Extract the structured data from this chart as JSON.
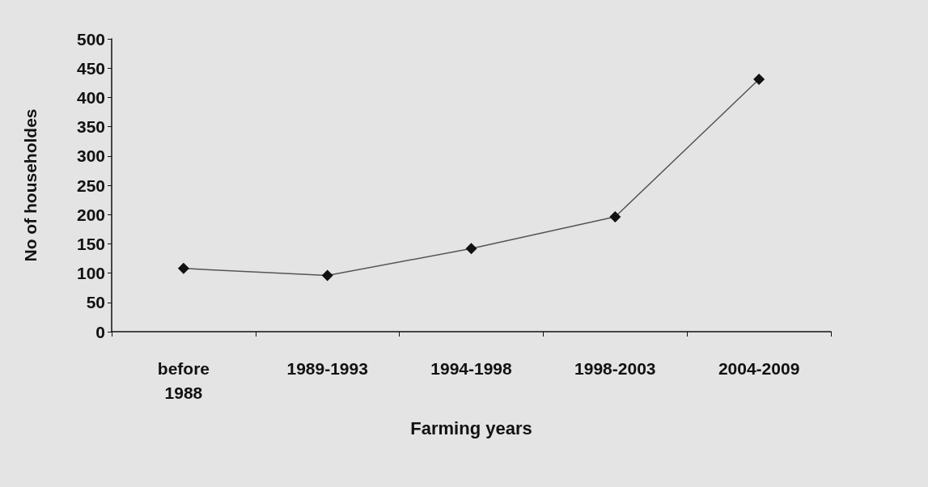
{
  "chart_data": {
    "type": "line",
    "xlabel": "Farming years",
    "ylabel": "No of householdes",
    "categories": [
      "before\n1988",
      "1989-1993",
      "1994-1998",
      "1998-2003",
      "2004-2009"
    ],
    "series": [
      {
        "color": "#555555",
        "values": [
          108,
          96,
          142,
          196,
          431
        ]
      }
    ],
    "ylim": [
      0,
      500
    ],
    "yticks": [
      0,
      50,
      100,
      150,
      200,
      250,
      300,
      350,
      400,
      450,
      500
    ],
    "grid": false,
    "marker": "diamond",
    "line_style": "solid"
  }
}
